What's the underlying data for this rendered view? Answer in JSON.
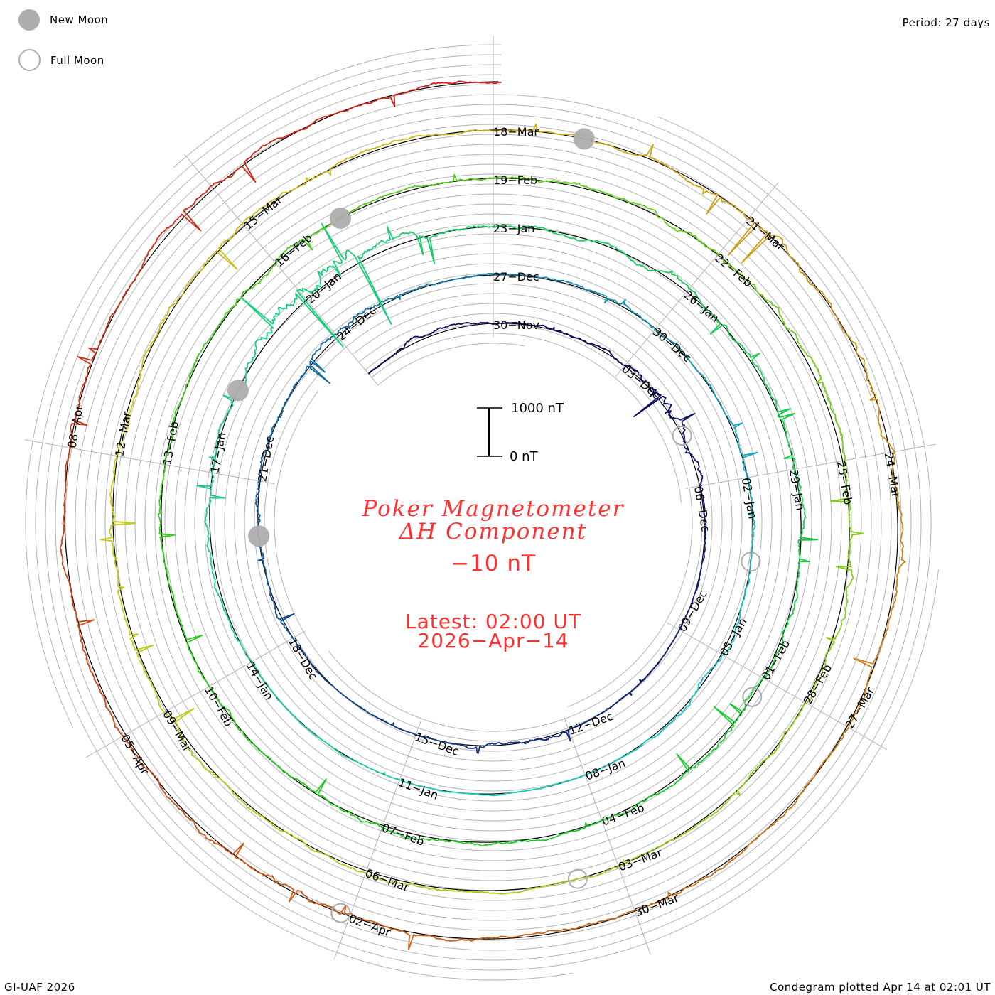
{
  "legend": {
    "new_moon": "New Moon",
    "full_moon": "Full Moon"
  },
  "period_label": "Period: 27 days",
  "footer_left": "GI-UAF 2026",
  "footer_right": "Condegram plotted Apr 14 at 02:01 UT",
  "scale_bar": {
    "top_label": "1000 nT",
    "bottom_label": "0 nT"
  },
  "center": {
    "title_line1": "Poker Magnetometer",
    "title_line2": "ΔH Component",
    "current_value": "−10 nT",
    "latest_line1": "Latest: 02:00 UT",
    "latest_line2": "2026−Apr−14"
  },
  "colors": {
    "title": "#ff3030",
    "moon": "#adadad",
    "grid": "#b4b4b4",
    "baseline": "#000000"
  },
  "chart_data": {
    "type": "line",
    "subtype": "condegram-spiral",
    "title": "Poker Magnetometer ΔH Component",
    "period_days": 27,
    "day_zero": "30-Nov-2025",
    "start_day": -3,
    "end_day": 135.08,
    "scale_nT": 1000,
    "daily_activity_nT": [
      150,
      300,
      200,
      150,
      200,
      250,
      500,
      700,
      400,
      200,
      150,
      100,
      100,
      80,
      100,
      350,
      300,
      120,
      80,
      80,
      150,
      250,
      200,
      400,
      450,
      300,
      400,
      500,
      300,
      150,
      150,
      200,
      250,
      150,
      200,
      350,
      300,
      200,
      250,
      400,
      200,
      150,
      120,
      100,
      120,
      100,
      100,
      150,
      200,
      300,
      400,
      350,
      600,
      1200,
      1300,
      700,
      400,
      350,
      300,
      400,
      350,
      300,
      400,
      500,
      300,
      400,
      450,
      300,
      250,
      200,
      300,
      400,
      350,
      250,
      300,
      300,
      250,
      300,
      350,
      300,
      400,
      350,
      300,
      300,
      250,
      400,
      600,
      550,
      400,
      350,
      400,
      450,
      350,
      300,
      250,
      200,
      200,
      250,
      350,
      300,
      350,
      400,
      300,
      250,
      400,
      450,
      400,
      400,
      350,
      300,
      250,
      200,
      300,
      450,
      600,
      500,
      550,
      500,
      350,
      300,
      250,
      300,
      350,
      300,
      250,
      450,
      600,
      400,
      350,
      400,
      350,
      300,
      350,
      300,
      400,
      450,
      350,
      300,
      200
    ],
    "date_labels": [
      {
        "day": 0,
        "text": "30−Nov"
      },
      {
        "day": 3,
        "text": "03−Dec"
      },
      {
        "day": 6,
        "text": "06−Dec"
      },
      {
        "day": 9,
        "text": "09−Dec"
      },
      {
        "day": 12,
        "text": "12−Dec"
      },
      {
        "day": 15,
        "text": "15−Dec"
      },
      {
        "day": 18,
        "text": "18−Dec"
      },
      {
        "day": 21,
        "text": "21−Dec"
      },
      {
        "day": 24,
        "text": "24−Dec"
      },
      {
        "day": 27,
        "text": "27−Dec"
      },
      {
        "day": 30,
        "text": "30−Dec"
      },
      {
        "day": 33,
        "text": "02−Jan"
      },
      {
        "day": 36,
        "text": "05−Jan"
      },
      {
        "day": 39,
        "text": "08−Jan"
      },
      {
        "day": 42,
        "text": "11−Jan"
      },
      {
        "day": 45,
        "text": "14−Jan"
      },
      {
        "day": 48,
        "text": "17−Jan"
      },
      {
        "day": 51,
        "text": "20−Jan"
      },
      {
        "day": 54,
        "text": "23−Jan"
      },
      {
        "day": 57,
        "text": "26−Jan"
      },
      {
        "day": 60,
        "text": "29−Jan"
      },
      {
        "day": 63,
        "text": "01−Feb"
      },
      {
        "day": 66,
        "text": "04−Feb"
      },
      {
        "day": 69,
        "text": "07−Feb"
      },
      {
        "day": 72,
        "text": "10−Feb"
      },
      {
        "day": 75,
        "text": "13−Feb"
      },
      {
        "day": 78,
        "text": "16−Feb"
      },
      {
        "day": 81,
        "text": "19−Feb"
      },
      {
        "day": 84,
        "text": "22−Feb"
      },
      {
        "day": 87,
        "text": "25−Feb"
      },
      {
        "day": 90,
        "text": "28−Feb"
      },
      {
        "day": 93,
        "text": "03−Mar"
      },
      {
        "day": 96,
        "text": "06−Mar"
      },
      {
        "day": 99,
        "text": "09−Mar"
      },
      {
        "day": 102,
        "text": "12−Mar"
      },
      {
        "day": 105,
        "text": "15−Mar"
      },
      {
        "day": 108,
        "text": "18−Mar"
      },
      {
        "day": 111,
        "text": "21−Mar"
      },
      {
        "day": 114,
        "text": "24−Mar"
      },
      {
        "day": 117,
        "text": "27−Mar"
      },
      {
        "day": 120,
        "text": "30−Mar"
      },
      {
        "day": 123,
        "text": "02−Apr"
      },
      {
        "day": 126,
        "text": "05−Apr"
      },
      {
        "day": 129,
        "text": "08−Apr"
      }
    ],
    "new_moon_days": [
      20.0,
      49.3,
      79.0,
      109.0
    ],
    "full_moon_days": [
      4.9,
      34.4,
      63.3,
      93.5,
      123.1
    ]
  }
}
